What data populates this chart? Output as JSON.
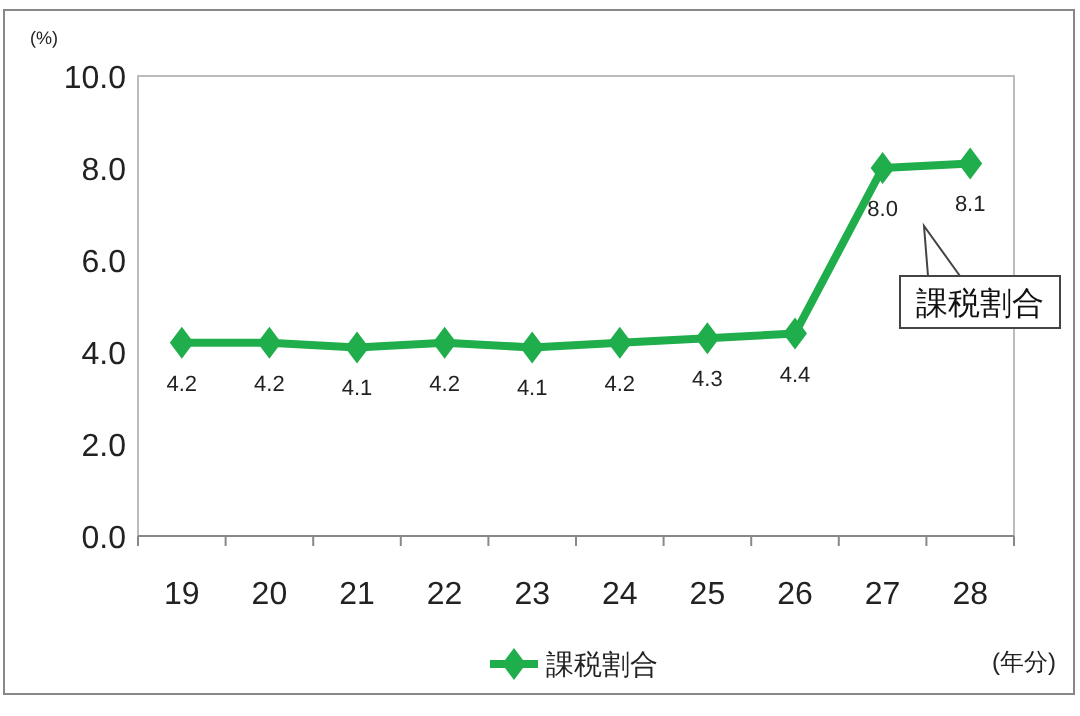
{
  "chart_data": {
    "type": "line",
    "categories": [
      "19",
      "20",
      "21",
      "22",
      "23",
      "24",
      "25",
      "26",
      "27",
      "28"
    ],
    "series": [
      {
        "name": "課税割合",
        "color": "#1fae4b",
        "values": [
          4.2,
          4.2,
          4.1,
          4.2,
          4.1,
          4.2,
          4.3,
          4.4,
          8.0,
          8.1
        ]
      }
    ],
    "ylabel": "(%)",
    "xlabel": "(年分)",
    "ylim": [
      0,
      10
    ],
    "yticks": [
      {
        "value": 0,
        "label": "0.0"
      },
      {
        "value": 2,
        "label": "2.0"
      },
      {
        "value": 4,
        "label": "4.0"
      },
      {
        "value": 6,
        "label": "6.0"
      },
      {
        "value": 8,
        "label": "8.0"
      },
      {
        "value": 10,
        "label": "10.0"
      }
    ],
    "annotations": [
      "課税割合"
    ],
    "value_labels": [
      "4.2",
      "4.2",
      "4.1",
      "4.2",
      "4.1",
      "4.2",
      "4.3",
      "4.4",
      "8.0",
      "8.1"
    ],
    "marker": "diamond",
    "line_style": "solid",
    "grid": false,
    "legend": "bottom"
  }
}
